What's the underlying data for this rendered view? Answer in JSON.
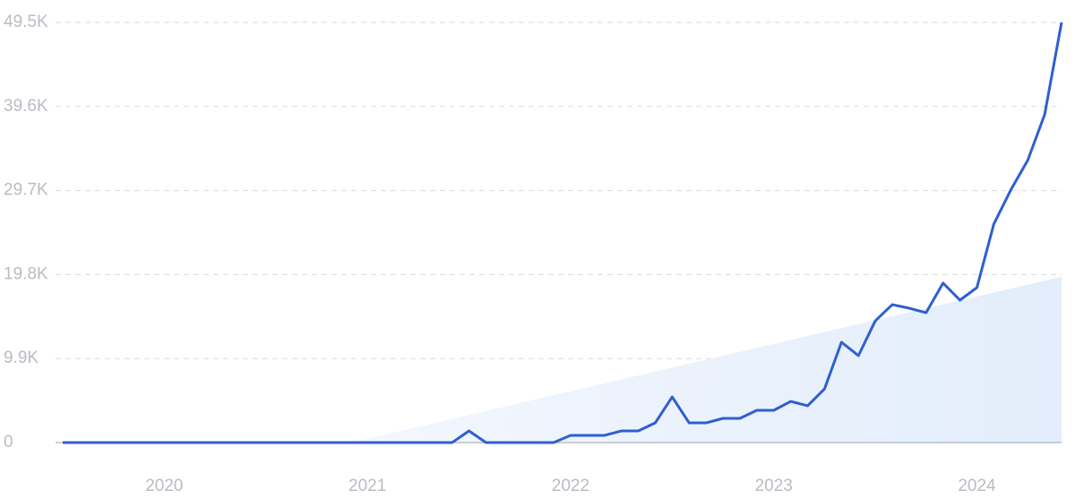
{
  "chart_data": {
    "type": "line",
    "categories": [
      null,
      null,
      null,
      null,
      null,
      null,
      "2020",
      null,
      null,
      null,
      null,
      null,
      null,
      null,
      null,
      null,
      null,
      null,
      "2021",
      null,
      null,
      null,
      null,
      null,
      null,
      null,
      null,
      null,
      null,
      null,
      "2022",
      null,
      null,
      null,
      null,
      null,
      null,
      null,
      null,
      null,
      null,
      null,
      "2023",
      null,
      null,
      null,
      null,
      null,
      null,
      null,
      null,
      null,
      null,
      null,
      "2024",
      null,
      null,
      null,
      null,
      null
    ],
    "series": [
      {
        "color": "#2f5fd0",
        "values": [
          0,
          0,
          0,
          0,
          0,
          0,
          0,
          0,
          0,
          0,
          0,
          0,
          0,
          0,
          0,
          0,
          0,
          0,
          0,
          0,
          0,
          0,
          0,
          0,
          1370,
          0,
          0,
          0,
          0,
          0,
          850,
          850,
          850,
          1370,
          1370,
          2320,
          5380,
          2320,
          2320,
          2850,
          2850,
          3800,
          3800,
          4850,
          4330,
          6330,
          11820,
          10240,
          14350,
          16250,
          15830,
          15300,
          18790,
          16780,
          18260,
          25750,
          29760,
          33250,
          38630,
          49500
        ]
      },
      {
        "color": "#e6effc",
        "area": true,
        "values": [
          null,
          null,
          null,
          null,
          null,
          null,
          null,
          null,
          null,
          null,
          null,
          null,
          null,
          null,
          null,
          null,
          null,
          0,
          465,
          930,
          1395,
          1860,
          2325,
          2790,
          3255,
          3720,
          4185,
          4650,
          5115,
          5580,
          6045,
          6510,
          6975,
          7440,
          7905,
          8370,
          8835,
          9300,
          9765,
          10230,
          10695,
          11160,
          11625,
          12090,
          12555,
          13020,
          13485,
          13950,
          14415,
          14880,
          15345,
          15810,
          16275,
          16740,
          17205,
          17670,
          18135,
          18600,
          19065,
          19530
        ]
      }
    ],
    "ylim": [
      0,
      49500
    ],
    "yticks": [
      0,
      {
        "value": 9900,
        "label": "9.9K"
      },
      {
        "value": 19800,
        "label": "19.8K"
      },
      {
        "value": 29700,
        "label": "29.7K"
      },
      {
        "value": 39600,
        "label": "39.6K"
      },
      {
        "value": 49500,
        "label": "49.5K"
      }
    ],
    "grid": true
  }
}
